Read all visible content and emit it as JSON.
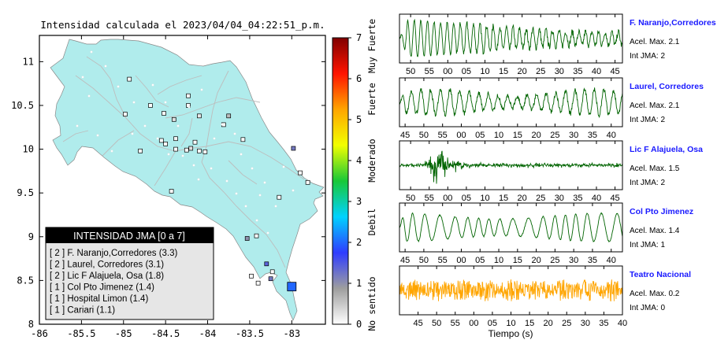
{
  "chart_data": [
    {
      "type": "map",
      "title": "Intensidad calculada el 2023/04/04_04:22:51_p.m.",
      "x_ticks": [
        "-86",
        "-85.5",
        "-85",
        "-84.5",
        "-84",
        "-83.5",
        "-83"
      ],
      "x_tick_values": [
        -86,
        -85.5,
        -85,
        -84.5,
        -84,
        -83.5,
        -83
      ],
      "y_ticks": [
        "8",
        "8.5",
        "9",
        "9.5",
        "10",
        "10.5",
        "11"
      ],
      "y_tick_values": [
        8,
        8.5,
        9,
        9.5,
        10,
        10.5,
        11
      ],
      "xlim": [
        -86,
        -82.6
      ],
      "ylim": [
        8,
        11.3
      ],
      "legend": {
        "title": "INTENSIDAD JMA [0 a 7]",
        "position": "bottom-left",
        "entries": [
          "[ 2 ]  F. Naranjo,Corredores (3.3)",
          "[ 2 ]  Laurel, Corredores (3.1)",
          "[ 2 ]  Lic F Alajuela, Osa (1.8)",
          "[ 1 ]  Col Pto Jimenez (1.4)",
          "[ 1 ]  Hospital Limon (1.4)",
          "[ 1 ]  Cariari (1.1)"
        ]
      },
      "colorbar": {
        "ticks": [
          "0",
          "1",
          "2",
          "3",
          "4",
          "5",
          "6",
          "7"
        ],
        "tick_values": [
          0,
          1,
          2,
          3,
          4,
          5,
          6,
          7
        ],
        "range": [
          0,
          7
        ],
        "labels": [
          "No sentido",
          "Debil",
          "Moderado",
          "Fuerte",
          "Muy Fuerte"
        ],
        "label_values": [
          0.5,
          2.5,
          4,
          5.5,
          6.8
        ],
        "colors": [
          "#ffffff",
          "#9e9e9e",
          "#2f3cff",
          "#00d2ff",
          "#18c838",
          "#f2ff00",
          "#ffa500",
          "#ff1400",
          "#800000"
        ]
      },
      "stations": [
        {
          "lon": -84.93,
          "lat": 10.8,
          "intensity": 0
        },
        {
          "lon": -84.68,
          "lat": 10.5,
          "intensity": 0
        },
        {
          "lon": -84.23,
          "lat": 10.61,
          "intensity": 0
        },
        {
          "lon": -84.23,
          "lat": 10.5,
          "intensity": 0
        },
        {
          "lon": -84.98,
          "lat": 10.4,
          "intensity": 0
        },
        {
          "lon": -83.75,
          "lat": 10.38,
          "intensity": 0.6
        },
        {
          "lon": -84.52,
          "lat": 10.41,
          "intensity": 0
        },
        {
          "lon": -84.1,
          "lat": 10.38,
          "intensity": 0.2
        },
        {
          "lon": -84.4,
          "lat": 10.34,
          "intensity": 0.3
        },
        {
          "lon": -83.81,
          "lat": 10.28,
          "intensity": 0
        },
        {
          "lon": -83.58,
          "lat": 10.11,
          "intensity": 0
        },
        {
          "lon": -82.98,
          "lat": 10.01,
          "intensity": 1.2
        },
        {
          "lon": -84.38,
          "lat": 10.12,
          "intensity": 0.1
        },
        {
          "lon": -84.5,
          "lat": 10.06,
          "intensity": 0
        },
        {
          "lon": -84.2,
          "lat": 10.01,
          "intensity": 0.3
        },
        {
          "lon": -84.1,
          "lat": 9.98,
          "intensity": 0
        },
        {
          "lon": -84.03,
          "lat": 9.97,
          "intensity": 0
        },
        {
          "lon": -84.38,
          "lat": 10.0,
          "intensity": 0
        },
        {
          "lon": -84.15,
          "lat": 10.08,
          "intensity": 0
        },
        {
          "lon": -84.25,
          "lat": 9.99,
          "intensity": 0
        },
        {
          "lon": -84.8,
          "lat": 9.98,
          "intensity": 0
        },
        {
          "lon": -84.55,
          "lat": 10.1,
          "intensity": 0
        },
        {
          "lon": -82.9,
          "lat": 9.73,
          "intensity": 0
        },
        {
          "lon": -82.81,
          "lat": 9.62,
          "intensity": 0
        },
        {
          "lon": -84.43,
          "lat": 9.52,
          "intensity": 0
        },
        {
          "lon": -83.15,
          "lat": 9.45,
          "intensity": 0
        },
        {
          "lon": -83.42,
          "lat": 9.01,
          "intensity": 0
        },
        {
          "lon": -83.53,
          "lat": 8.98,
          "intensity": 1.0
        },
        {
          "lon": -83.3,
          "lat": 8.69,
          "intensity": 1.4
        },
        {
          "lon": -83.23,
          "lat": 8.6,
          "intensity": 0
        },
        {
          "lon": -83.48,
          "lat": 8.55,
          "intensity": 0
        },
        {
          "lon": -83.4,
          "lat": 8.47,
          "intensity": 0
        },
        {
          "lon": -83.25,
          "lat": 8.52,
          "intensity": 1.2
        },
        {
          "lon": -83.0,
          "lat": 8.43,
          "intensity": 2
        }
      ]
    },
    {
      "type": "line",
      "xlabel": "Tiempo (s)",
      "panels": [
        {
          "station": "F. Naranjo,Corredores",
          "acel": "Acel. Max. 2.1",
          "int": "Int JMA: 2",
          "color": "#006400",
          "ticks": [
            "50",
            "55",
            "00",
            "05",
            "10",
            "15",
            "20",
            "25",
            "30",
            "35",
            "40",
            "45"
          ],
          "tick_values": [
            50,
            55,
            60,
            65,
            70,
            75,
            80,
            85,
            90,
            95,
            100,
            105
          ],
          "xlim": [
            47,
            107
          ],
          "pattern": "early"
        },
        {
          "station": "Laurel, Corredores",
          "acel": "Acel. Max. 2.1",
          "int": "Int JMA: 2",
          "color": "#006400",
          "ticks": [
            "45",
            "50",
            "55",
            "00",
            "05",
            "10",
            "15",
            "20",
            "25",
            "30",
            "35",
            "40"
          ],
          "tick_values": [
            45,
            50,
            55,
            60,
            65,
            70,
            75,
            80,
            85,
            90,
            95,
            100
          ],
          "xlim": [
            43.5,
            103
          ],
          "pattern": "steady"
        },
        {
          "station": "Lic F Alajuela, Osa",
          "acel": "Acel. Max. 1.5",
          "int": "Int JMA: 2",
          "color": "#006400",
          "ticks": [
            "50",
            "55",
            "00",
            "05",
            "10",
            "15",
            "20",
            "25",
            "30",
            "35",
            "40",
            "45"
          ],
          "tick_values": [
            50,
            55,
            60,
            65,
            70,
            75,
            80,
            85,
            90,
            95,
            100,
            105
          ],
          "xlim": [
            47,
            107
          ],
          "pattern": "burst"
        },
        {
          "station": "Col Pto Jimenez",
          "acel": "Acel. Max. 1.4",
          "int": "Int JMA: 1",
          "color": "#006400",
          "ticks": [
            "45",
            "50",
            "55",
            "00",
            "05",
            "10",
            "15",
            "20",
            "25",
            "30",
            "35",
            "40"
          ],
          "tick_values": [
            45,
            50,
            55,
            60,
            65,
            70,
            75,
            80,
            85,
            90,
            95,
            100
          ],
          "xlim": [
            43.5,
            103
          ],
          "pattern": "smooth"
        },
        {
          "station": "Teatro Nacional",
          "acel": "Acel. Max. 0.2",
          "int": "Int JMA: 0",
          "color": "#ffa500",
          "ticks": [
            "45",
            "50",
            "55",
            "00",
            "05",
            "10",
            "15",
            "20",
            "25",
            "30",
            "35",
            "40"
          ],
          "tick_values": [
            45,
            50,
            55,
            60,
            65,
            70,
            75,
            80,
            85,
            90,
            95,
            100
          ],
          "xlim": [
            40,
            100
          ],
          "pattern": "noise"
        }
      ]
    }
  ]
}
